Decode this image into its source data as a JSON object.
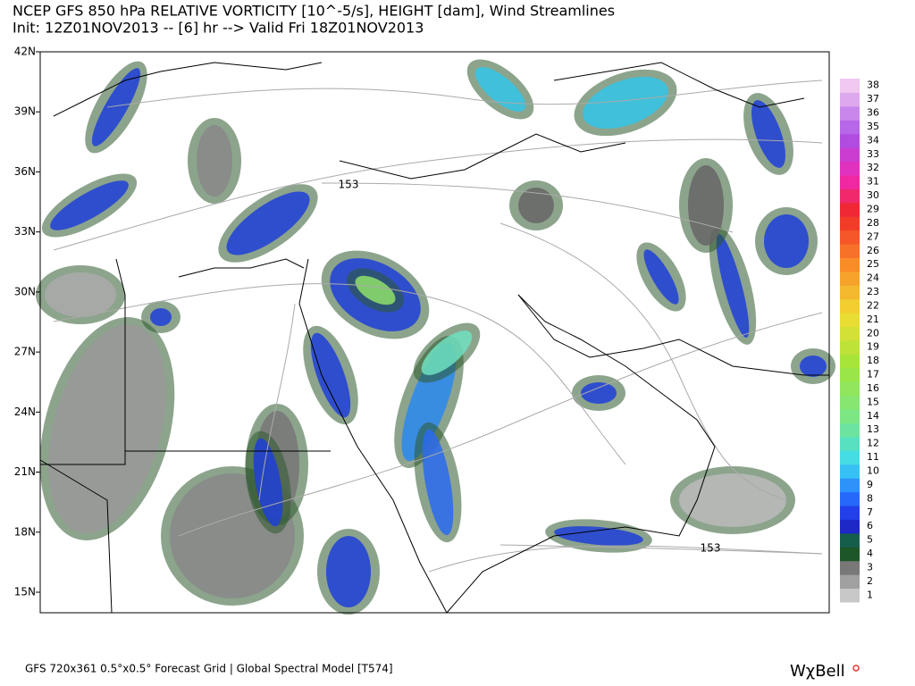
{
  "header": {
    "title": "NCEP GFS 850 hPa RELATIVE VORTICITY [10^-5/s], HEIGHT [dam], Wind Streamlines",
    "subtitle": "Init: 12Z01NOV2013 -- [6] hr --> Valid Fri 18Z01NOV2013"
  },
  "map": {
    "lat_labels": [
      "42N",
      "39N",
      "36N",
      "33N",
      "30N",
      "27N",
      "24N",
      "21N",
      "18N",
      "15N"
    ],
    "contour_labels": [
      "153",
      "153"
    ]
  },
  "colorbar": {
    "labels": [
      "1",
      "2",
      "3",
      "4",
      "5",
      "6",
      "7",
      "8",
      "9",
      "10",
      "11",
      "12",
      "13",
      "14",
      "15",
      "16",
      "17",
      "18",
      "19",
      "20",
      "21",
      "22",
      "23",
      "24",
      "25",
      "26",
      "27",
      "28",
      "29",
      "30",
      "31",
      "32",
      "33",
      "34",
      "35",
      "36",
      "37",
      "38"
    ]
  },
  "footer": {
    "text": "GFS 720x361 0.5°x0.5° Forecast Grid | Global Spectral Model [T574]",
    "logo": "WχBell"
  }
}
